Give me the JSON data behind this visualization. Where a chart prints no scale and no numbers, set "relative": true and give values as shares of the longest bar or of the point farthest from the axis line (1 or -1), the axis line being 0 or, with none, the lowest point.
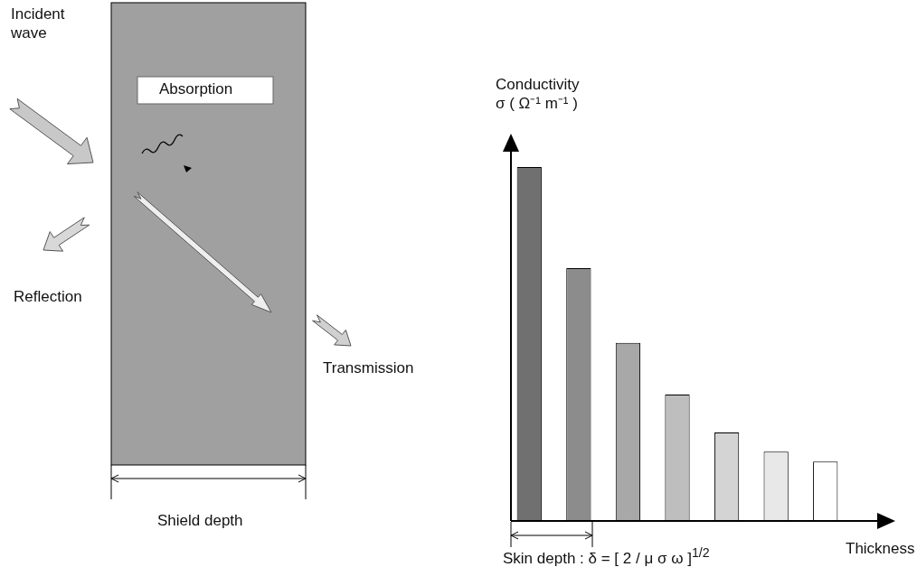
{
  "chart_data": {
    "type": "bar",
    "relative": true,
    "categories": [
      null,
      null,
      null,
      null,
      null,
      null,
      null
    ],
    "values": [
      1,
      0.714,
      0.503,
      0.357,
      0.25,
      0.196,
      0.168
    ],
    "colors": [
      "#707070",
      "#8c8c8c",
      "#a8a8a8",
      "#bebebe",
      "#d4d4d4",
      "#e8e8e8",
      "#ffffff"
    ],
    "xlabel": "Thickness",
    "ylabel": "Conductivity\nσ ( Ω⁻¹ m⁻¹ )",
    "annotations": [
      "Incident wave",
      "Absorption",
      "Reflection",
      "Transmission",
      "Shield depth",
      "Skin depth : δ = [ 2 / μ σ ω ]$^{1/2}$"
    ]
  }
}
